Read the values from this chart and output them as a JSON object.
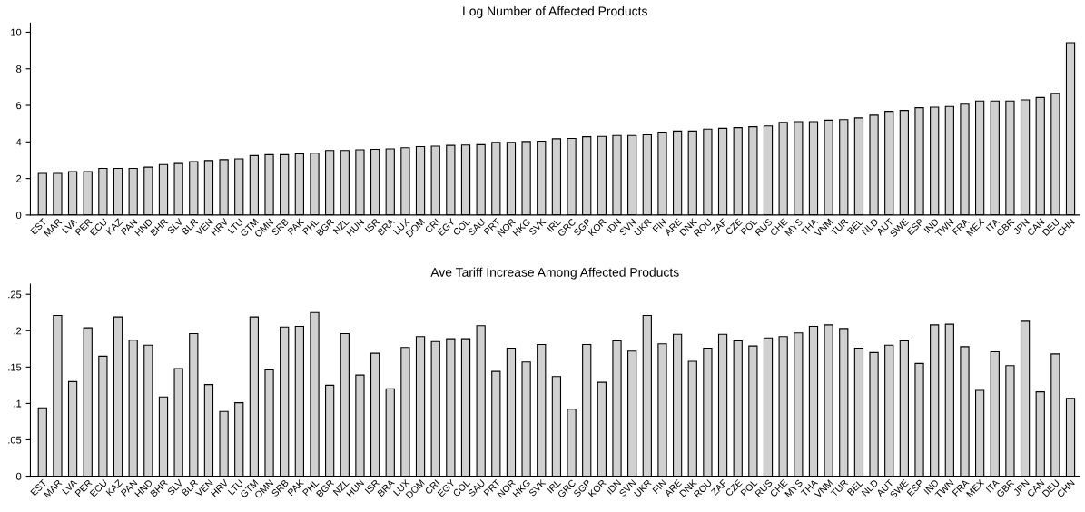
{
  "chart_data": [
    {
      "type": "bar",
      "title": "Log Number of Affected Products",
      "categories": [
        "EST",
        "MAR",
        "LVA",
        "PER",
        "ECU",
        "KAZ",
        "PAN",
        "HND",
        "BHR",
        "SLV",
        "BLR",
        "VEN",
        "HRV",
        "LTU",
        "GTM",
        "OMN",
        "SRB",
        "PAK",
        "PHL",
        "BGR",
        "NZL",
        "HUN",
        "ISR",
        "BRA",
        "LUX",
        "DOM",
        "CRI",
        "EGY",
        "COL",
        "SAU",
        "PRT",
        "NOR",
        "HKG",
        "SVK",
        "IRL",
        "GRC",
        "SGP",
        "KOR",
        "IDN",
        "SVN",
        "UKR",
        "FIN",
        "ARE",
        "DNK",
        "ROU",
        "ZAF",
        "CZE",
        "POL",
        "RUS",
        "CHE",
        "MYS",
        "THA",
        "VNM",
        "TUR",
        "BEL",
        "NLD",
        "AUT",
        "SWE",
        "ESP",
        "IND",
        "TWN",
        "FRA",
        "MEX",
        "ITA",
        "GBR",
        "JPN",
        "CAN",
        "DEU",
        "CHN"
      ],
      "values": [
        2.28,
        2.28,
        2.38,
        2.38,
        2.55,
        2.55,
        2.55,
        2.62,
        2.76,
        2.82,
        2.92,
        2.98,
        3.03,
        3.07,
        3.25,
        3.3,
        3.3,
        3.35,
        3.38,
        3.53,
        3.53,
        3.57,
        3.59,
        3.62,
        3.68,
        3.74,
        3.77,
        3.81,
        3.83,
        3.85,
        3.97,
        3.97,
        4.02,
        4.04,
        4.17,
        4.19,
        4.28,
        4.3,
        4.35,
        4.35,
        4.39,
        4.54,
        4.59,
        4.59,
        4.7,
        4.74,
        4.78,
        4.83,
        4.87,
        5.07,
        5.11,
        5.11,
        5.19,
        5.22,
        5.31,
        5.46,
        5.67,
        5.72,
        5.87,
        5.9,
        5.94,
        6.06,
        6.24,
        6.24,
        6.24,
        6.3,
        6.43,
        6.65,
        9.43
      ],
      "color": "#d0d0d0",
      "ylim": [
        0,
        10.5
      ],
      "yticks": [
        0,
        2,
        4,
        6,
        8,
        10
      ]
    },
    {
      "type": "bar",
      "title": "Ave Tariff Increase Among Affected Products",
      "categories": [
        "EST",
        "MAR",
        "LVA",
        "PER",
        "ECU",
        "KAZ",
        "PAN",
        "HND",
        "BHR",
        "SLV",
        "BLR",
        "VEN",
        "HRV",
        "LTU",
        "GTM",
        "OMN",
        "SRB",
        "PAK",
        "PHL",
        "BGR",
        "NZL",
        "HUN",
        "ISR",
        "BRA",
        "LUX",
        "DOM",
        "CRI",
        "EGY",
        "COL",
        "SAU",
        "PRT",
        "NOR",
        "HKG",
        "SVK",
        "IRL",
        "GRC",
        "SGP",
        "KOR",
        "IDN",
        "SVN",
        "UKR",
        "FIN",
        "ARE",
        "DNK",
        "ROU",
        "ZAF",
        "CZE",
        "POL",
        "RUS",
        "CHE",
        "MYS",
        "THA",
        "VNM",
        "TUR",
        "BEL",
        "NLD",
        "AUT",
        "SWE",
        "ESP",
        "IND",
        "TWN",
        "FRA",
        "MEX",
        "ITA",
        "GBR",
        "JPN",
        "CAN",
        "DEU",
        "CHN"
      ],
      "values": [
        0.094,
        0.221,
        0.13,
        0.204,
        0.165,
        0.219,
        0.187,
        0.18,
        0.109,
        0.148,
        0.196,
        0.126,
        0.089,
        0.101,
        0.219,
        0.146,
        0.205,
        0.206,
        0.225,
        0.125,
        0.196,
        0.139,
        0.169,
        0.12,
        0.177,
        0.192,
        0.185,
        0.189,
        0.189,
        0.207,
        0.144,
        0.176,
        0.157,
        0.181,
        0.137,
        0.092,
        0.181,
        0.129,
        0.186,
        0.172,
        0.221,
        0.182,
        0.195,
        0.158,
        0.176,
        0.195,
        0.186,
        0.179,
        0.19,
        0.192,
        0.197,
        0.206,
        0.208,
        0.203,
        0.176,
        0.17,
        0.18,
        0.186,
        0.155,
        0.208,
        0.209,
        0.178,
        0.118,
        0.171,
        0.152,
        0.213,
        0.116,
        0.168,
        0.107
      ],
      "color": "#d0d0d0",
      "ylim": [
        0,
        0.264
      ],
      "yticks": [
        0,
        {
          "value": 0.05,
          "label": ".05"
        },
        {
          "value": 0.1,
          "label": ".1"
        },
        {
          "value": 0.15,
          "label": ".15"
        },
        {
          "value": 0.2,
          "label": ".2"
        },
        {
          "value": 0.25,
          "label": ".25"
        }
      ]
    }
  ]
}
